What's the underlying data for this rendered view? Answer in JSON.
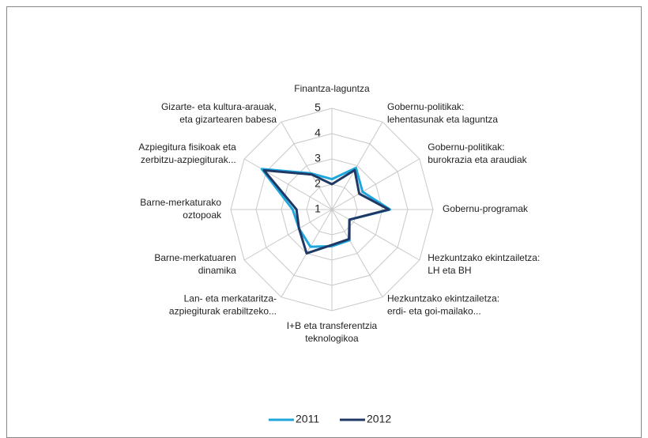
{
  "chart_data": {
    "type": "radar",
    "categories": [
      [
        "Finantza-laguntza"
      ],
      [
        "Gobernu-politikak:",
        "lehentasunak eta laguntza"
      ],
      [
        "Gobernu-politikak:",
        "burokrazia eta araudiak"
      ],
      [
        "Gobernu-programak"
      ],
      [
        "Hezkuntzako ekintzailetza:",
        "LH eta BH"
      ],
      [
        "Hezkuntzako ekintzailetza:",
        "erdi- eta goi-mailako..."
      ],
      [
        "I+B eta transferentzia",
        "teknologikoa"
      ],
      [
        "Lan- eta merkataritza-",
        "azpiegiturak erabiltzeko..."
      ],
      [
        "Barne-merkatuaren",
        "dinamika"
      ],
      [
        "Barne-merkaturako",
        "oztopoak"
      ],
      [
        "Azpiegitura fisikoak eta",
        "zerbitzu-azpiegiturak..."
      ],
      [
        "Gizarte- eta kultura-arauak,",
        "eta gizartearen babesa"
      ]
    ],
    "series": [
      {
        "name": "2011",
        "color": "#1ea6dd",
        "values": [
          2.2,
          2.9,
          2.4,
          3.3,
          1.8,
          2.4,
          2.45,
          2.7,
          2.5,
          2.55,
          4.2,
          2.65
        ]
      },
      {
        "name": "2012",
        "color": "#1f3864",
        "values": [
          2.0,
          2.8,
          2.25,
          3.25,
          1.8,
          2.35,
          2.4,
          3.0,
          2.5,
          2.4,
          4.1,
          2.6
        ]
      }
    ],
    "ylim": [
      1,
      5
    ],
    "yticks": [
      1,
      2,
      3,
      4,
      5
    ],
    "grid": true,
    "legend": "bottom"
  }
}
